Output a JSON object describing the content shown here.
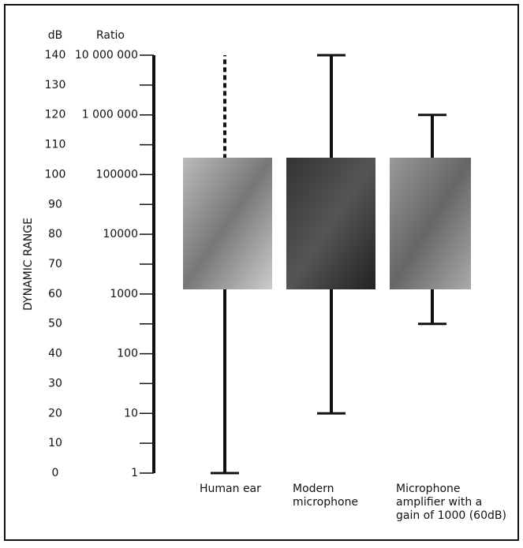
{
  "chart_data": {
    "type": "range",
    "ylabel": "DYNAMIC RANGE",
    "y_axis_title": "dB",
    "y2_axis_title": "Ratio",
    "ylim": [
      0,
      140
    ],
    "yticks": [
      0,
      10,
      20,
      30,
      40,
      50,
      60,
      70,
      80,
      90,
      100,
      110,
      120,
      130,
      140
    ],
    "y2lim": [
      1,
      10000000
    ],
    "y2log": true,
    "y2ticks": [
      1,
      10,
      100,
      1000,
      10000,
      100000,
      {
        "value": 1000000,
        "label": "1 000 000"
      },
      {
        "value": 10000000,
        "label": "10 000 000"
      }
    ],
    "categories": [
      [
        "Human ear"
      ],
      [
        "Modern",
        "microphone"
      ],
      [
        "Microphone",
        "amplifier with a",
        "gain of 1000 (60dB)"
      ]
    ],
    "low": [
      0,
      20,
      50
    ],
    "high": [
      140,
      140,
      120
    ],
    "dashed_above": [
      100,
      null,
      null
    ],
    "color": "#111111"
  }
}
